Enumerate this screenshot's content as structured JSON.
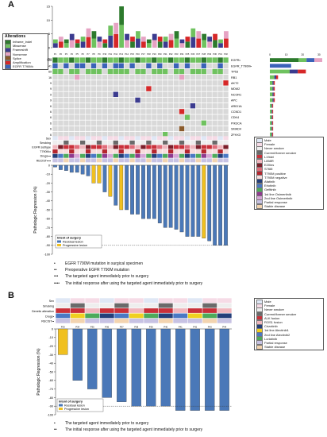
{
  "panelA": {
    "letter": "A",
    "alterations_title": "Alterations",
    "alterations": [
      {
        "label": "Inframe_indel",
        "color": "#2d7a2d"
      },
      {
        "label": "Missense",
        "color": "#6fc25f"
      },
      {
        "label": "Frameshift",
        "color": "#3b3b8f"
      },
      {
        "label": "Nonsense",
        "color": "#e6a3c3"
      },
      {
        "label": "Splice",
        "color": "#8a5a2b"
      },
      {
        "label": "Amplification",
        "color": "#d62728"
      },
      {
        "label": "EGFR T790M•",
        "color": "#3a62b8"
      }
    ],
    "samples": [
      "P1",
      "P2",
      "P3",
      "P4",
      "P5",
      "P6",
      "P7",
      "P8",
      "P9",
      "P10",
      "P11",
      "P12",
      "P13",
      "P14",
      "P15",
      "P16",
      "P17",
      "P18",
      "P19",
      "P20",
      "P21",
      "P22",
      "P23",
      "P24",
      "P25",
      "P26",
      "P27",
      "P28",
      "P29",
      "P30",
      "P31",
      "P32"
    ],
    "tmb_ticks": [
      "15",
      "10",
      "5",
      "0"
    ],
    "pct_header": "(%)",
    "genes": [
      {
        "pct": "100",
        "name": "EGFR•"
      },
      {
        "pct": "41",
        "name": "EGFR_T790M•"
      },
      {
        "pct": "69",
        "name": "TP53"
      },
      {
        "pct": "16",
        "name": "RB1"
      },
      {
        "pct": "9",
        "name": "AKT2"
      },
      {
        "pct": "9",
        "name": "MDM2"
      },
      {
        "pct": "9",
        "name": "NCOR1"
      },
      {
        "pct": "9",
        "name": "APC"
      },
      {
        "pct": "6",
        "name": "ARID1A"
      },
      {
        "pct": "6",
        "name": "CCND1"
      },
      {
        "pct": "6",
        "name": "CDK4"
      },
      {
        "pct": "6",
        "name": "PIK3CA"
      },
      {
        "pct": "6",
        "name": "SMAD4"
      },
      {
        "pct": "6",
        "name": "ZFHX3"
      }
    ],
    "gene_bar_ticks": [
      "0",
      "10",
      "20",
      "30"
    ],
    "clinical_rows": [
      "Sex",
      "Smoking",
      "EGFR subtype",
      "T790M••",
      "Drugs•••",
      "RECIST••••"
    ],
    "clinical_legend": [
      {
        "label": "Male",
        "color": "#dfe7f5"
      },
      {
        "label": "Female",
        "color": "#f6dbe6"
      },
      {
        "label": "Never smoker",
        "color": "#eeeeee"
      },
      {
        "label": "Current/former smoker",
        "color": "#6a6a6a"
      },
      {
        "label": "L19del",
        "color": "#c9303a"
      },
      {
        "label": "L858R",
        "color": "#f0b6bd"
      },
      {
        "label": "E20ins",
        "color": "#7c1f2a"
      },
      {
        "label": "S768I",
        "color": "#e06d7a"
      },
      {
        "label": "T790M positive",
        "color": "#b5262e"
      },
      {
        "label": "T790M negative",
        "color": "#f8dcdc"
      },
      {
        "label": "Afatinib",
        "color": "#243f7a"
      },
      {
        "label": "Erlotinib",
        "color": "#4a78c4"
      },
      {
        "label": "Gefitinib",
        "color": "#4daa5a"
      },
      {
        "label": "1st line Osimertinib",
        "color": "#8f3a8f"
      },
      {
        "label": "2nd line Osimertinib",
        "color": "#d6a6d6"
      },
      {
        "label": "Partial response",
        "color": "#c7c2e3"
      },
      {
        "label": "Stable disease",
        "color": "#f3d4b0"
      }
    ],
    "ylabel": "Pathologic Regression (%)",
    "yticks": [
      "0",
      "-10",
      "-20",
      "-30",
      "-40",
      "-50",
      "-60",
      "-70",
      "-80",
      "-90",
      "-100"
    ],
    "intent_title": "Intent of surgery",
    "intent_items": [
      {
        "label": "Residual lesion",
        "color": "#4a78b8"
      },
      {
        "label": "Progressive lesion",
        "color": "#f0c020"
      }
    ],
    "footnotes": [
      {
        "mark": "•",
        "text": "EGFR T790M mutation in surgical specimen"
      },
      {
        "mark": "••",
        "text": "Preoperative EGFR T790M mutation"
      },
      {
        "mark": "•••",
        "text": "The targeted agent immediately prior to surgery"
      },
      {
        "mark": "••••",
        "text": "The initial response after using the targeted agent immediately prior to surgery"
      }
    ]
  },
  "panelB": {
    "letter": "B",
    "clinical_rows": [
      "Sex",
      "Smoking",
      "Genetic alteration",
      "Drugs•",
      "RECIST••"
    ],
    "samples": [
      "P33",
      "P34",
      "P35",
      "P36",
      "P37",
      "P38",
      "P39",
      "P40",
      "P41",
      "P42",
      "P43",
      "P44"
    ],
    "clinical_legend": [
      {
        "label": "Male",
        "color": "#dfe7f5"
      },
      {
        "label": "Female",
        "color": "#f6dbe6"
      },
      {
        "label": "Never smoker",
        "color": "#eeeeee"
      },
      {
        "label": "Current/former smoker",
        "color": "#6a6a6a"
      },
      {
        "label": "ALK fusion",
        "color": "#c9303a"
      },
      {
        "label": "ROS1 fusion",
        "color": "#f0b6bd"
      },
      {
        "label": "Crizotinib",
        "color": "#243f7a"
      },
      {
        "label": "1st line Alectinib1",
        "color": "#f0d020"
      },
      {
        "label": "2nd line Alectinib2",
        "color": "#4a78c4"
      },
      {
        "label": "Lorlatinib",
        "color": "#4daa5a"
      },
      {
        "label": "Partial response",
        "color": "#c7c2e3"
      },
      {
        "label": "Stable disease",
        "color": "#f3d4b0"
      }
    ],
    "ylabel": "Pathologic Regression (%)",
    "yticks": [
      "0",
      "-10",
      "-20",
      "-30",
      "-40",
      "-50",
      "-60",
      "-70",
      "-80",
      "-90",
      "-100"
    ],
    "intent_title": "Intent of surgery",
    "intent_items": [
      {
        "label": "Residual lesion",
        "color": "#4a78b8"
      },
      {
        "label": "Progressive lesion",
        "color": "#f0c020"
      }
    ],
    "footnotes": [
      {
        "mark": "•",
        "text": "The targeted agent immediately prior to surgery"
      },
      {
        "mark": "••",
        "text": "The initial response after using the targeted agent immediately prior to surgery"
      }
    ]
  },
  "chart_data": [
    {
      "type": "bar",
      "title": "",
      "ylabel": "",
      "categories": [
        "P1",
        "P2",
        "P3",
        "P4",
        "P5",
        "P6",
        "P7",
        "P8",
        "P9",
        "P10",
        "P11",
        "P12",
        "P13",
        "P14",
        "P15",
        "P16",
        "P17",
        "P18",
        "P19",
        "P20",
        "P21",
        "P22",
        "P23",
        "P24",
        "P25",
        "P26",
        "P27",
        "P28",
        "P29",
        "P30",
        "P31",
        "P32"
      ],
      "values": [
        3,
        4,
        3,
        5,
        3,
        4,
        7,
        6,
        4,
        3,
        8,
        9,
        15,
        5,
        4,
        6,
        4,
        3,
        5,
        4,
        4,
        5,
        6,
        3,
        4,
        7,
        6,
        5,
        4,
        5,
        3,
        6
      ],
      "ylim": [
        0,
        15
      ]
    },
    {
      "type": "bar",
      "title": "",
      "ylabel": "Pathologic Regression (%)",
      "categories": [
        "P1",
        "P2",
        "P3",
        "P4",
        "P5",
        "P6",
        "P7",
        "P8",
        "P9",
        "P10",
        "P11",
        "P12",
        "P13",
        "P14",
        "P15",
        "P16",
        "P17",
        "P18",
        "P19",
        "P20",
        "P21",
        "P22",
        "P23",
        "P24",
        "P25",
        "P26",
        "P27",
        "P28",
        "P29",
        "P30",
        "P31",
        "P32"
      ],
      "values": [
        -2,
        -5,
        -6,
        -8,
        -8,
        -10,
        -12,
        -20,
        -20,
        -30,
        -35,
        -45,
        -50,
        -50,
        -55,
        -55,
        -60,
        -60,
        -60,
        -65,
        -70,
        -70,
        -72,
        -75,
        -80,
        -80,
        -80,
        -82,
        -85,
        -90,
        -90,
        -90
      ],
      "intent": [
        "R",
        "R",
        "R",
        "R",
        "R",
        "R",
        "R",
        "P",
        "P",
        "R",
        "P",
        "R",
        "P",
        "R",
        "R",
        "R",
        "R",
        "R",
        "R",
        "R",
        "R",
        "R",
        "R",
        "R",
        "R",
        "R",
        "R",
        "P",
        "R",
        "R",
        "R",
        "R"
      ],
      "ylim": [
        -100,
        0
      ]
    },
    {
      "type": "bar",
      "title": "",
      "ylabel": "Pathologic Regression (%)",
      "categories": [
        "P33",
        "P34",
        "P35",
        "P36",
        "P37",
        "P38",
        "P39",
        "P40",
        "P41",
        "P42",
        "P43",
        "P44"
      ],
      "values": [
        -30,
        -60,
        -70,
        -80,
        -85,
        -90,
        -90,
        -90,
        -95,
        -95,
        -95,
        -95
      ],
      "intent": [
        "P",
        "R",
        "R",
        "R",
        "R",
        "R",
        "R",
        "R",
        "R",
        "R",
        "R",
        "R"
      ],
      "ylim": [
        -100,
        0
      ]
    }
  ]
}
